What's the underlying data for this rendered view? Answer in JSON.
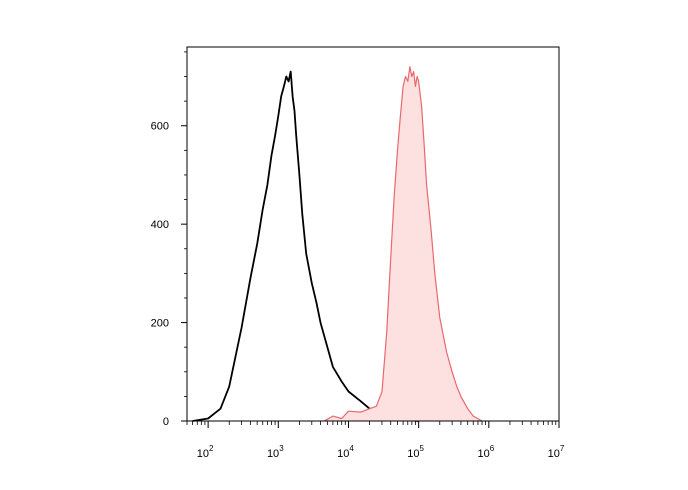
{
  "chart_data": {
    "type": "area",
    "title": "",
    "xlabel": "",
    "ylabel": "",
    "xscale": "log",
    "xlim": [
      50,
      10000000
    ],
    "ylim": [
      0,
      760
    ],
    "x_ticks": [
      {
        "base": "10",
        "exp": "2"
      },
      {
        "base": "10",
        "exp": "3"
      },
      {
        "base": "10",
        "exp": "4"
      },
      {
        "base": "10",
        "exp": "5"
      },
      {
        "base": "10",
        "exp": "6"
      },
      {
        "base": "10",
        "exp": "7"
      }
    ],
    "y_ticks": [
      "0",
      "200",
      "400",
      "600"
    ],
    "grid": false,
    "series": [
      {
        "color": "#000000",
        "fill": "none",
        "x": [
          60,
          100,
          150,
          200,
          300,
          400,
          500,
          600,
          700,
          800,
          900,
          1000,
          1100,
          1200,
          1300,
          1400,
          1500,
          1600,
          1700,
          1800,
          2000,
          2200,
          2500,
          3000,
          3500,
          4000,
          5000,
          6000,
          8000,
          10000,
          15000,
          20000,
          30000,
          40000,
          60000,
          100000
        ],
        "y": [
          0,
          5,
          25,
          70,
          190,
          290,
          360,
          430,
          480,
          540,
          580,
          620,
          660,
          680,
          700,
          690,
          710,
          660,
          630,
          580,
          500,
          420,
          340,
          280,
          240,
          200,
          150,
          110,
          80,
          60,
          40,
          25,
          12,
          5,
          2,
          0
        ]
      },
      {
        "color": "#e8686e",
        "fill": "#fde0e0",
        "x": [
          4500,
          6000,
          8000,
          10000,
          15000,
          20000,
          25000,
          30000,
          35000,
          40000,
          45000,
          50000,
          55000,
          60000,
          65000,
          70000,
          75000,
          80000,
          85000,
          90000,
          95000,
          100000,
          110000,
          120000,
          130000,
          150000,
          170000,
          200000,
          250000,
          300000,
          350000,
          400000,
          500000,
          600000,
          800000
        ],
        "y": [
          0,
          10,
          5,
          20,
          18,
          25,
          30,
          60,
          180,
          330,
          460,
          550,
          620,
          680,
          700,
          690,
          720,
          700,
          710,
          680,
          700,
          690,
          640,
          560,
          480,
          390,
          300,
          210,
          140,
          100,
          70,
          50,
          25,
          10,
          0
        ]
      }
    ]
  }
}
